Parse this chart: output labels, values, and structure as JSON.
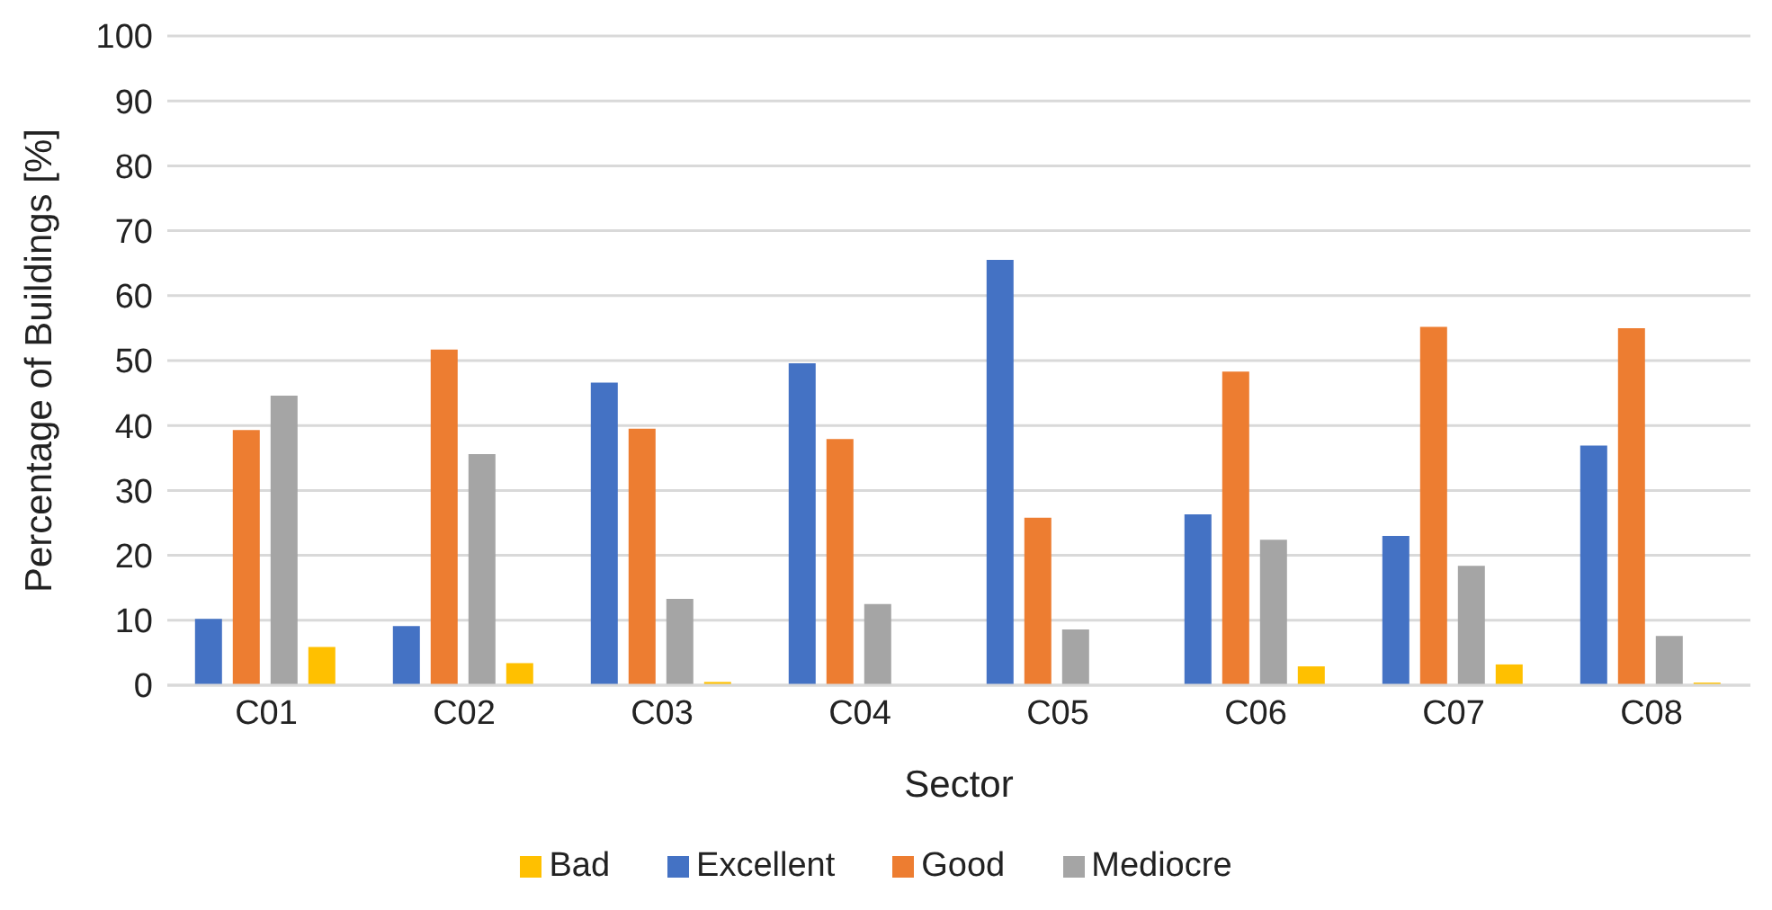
{
  "chart_data": {
    "type": "bar",
    "xlabel": "Sector",
    "ylabel": "Percentage of Buildings [%]",
    "categories": [
      "C01",
      "C02",
      "C03",
      "C04",
      "C05",
      "C06",
      "C07",
      "C08"
    ],
    "series": [
      {
        "name": "Excellent",
        "color": "#4472c4",
        "values": [
          10.2,
          9.1,
          46.6,
          49.6,
          65.5,
          26.3,
          23.0,
          36.9
        ]
      },
      {
        "name": "Good",
        "color": "#ed7d31",
        "values": [
          39.3,
          51.7,
          39.5,
          37.9,
          25.8,
          48.3,
          55.2,
          55.0
        ]
      },
      {
        "name": "Mediocre",
        "color": "#a5a5a5",
        "values": [
          44.6,
          35.6,
          13.3,
          12.5,
          8.6,
          22.4,
          18.4,
          7.6
        ]
      },
      {
        "name": "Bad",
        "color": "#ffc000",
        "values": [
          5.9,
          3.4,
          0.5,
          0,
          0,
          2.9,
          3.2,
          0.4
        ]
      }
    ],
    "ylim": [
      0,
      100
    ],
    "yticks": [
      0,
      10,
      20,
      30,
      40,
      50,
      60,
      70,
      80,
      90,
      100
    ],
    "grid": "y",
    "legend": "bottom"
  }
}
